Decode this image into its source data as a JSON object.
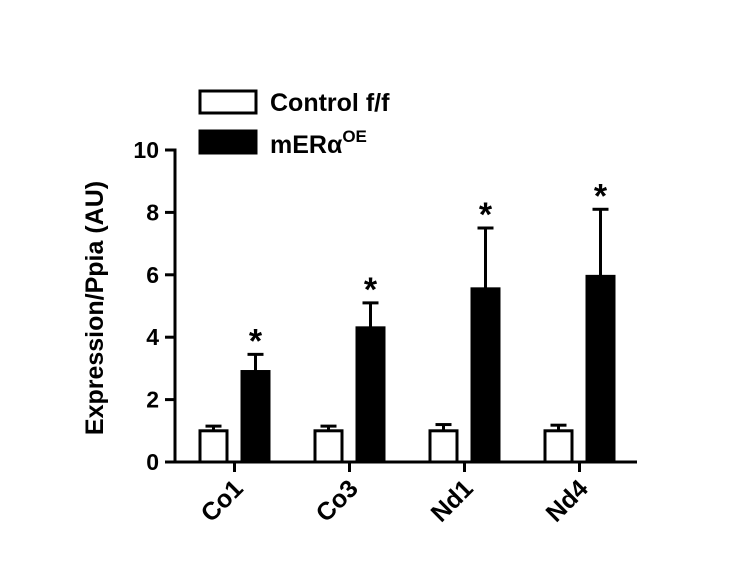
{
  "chart_data": {
    "type": "bar",
    "ylabel": "Expression/Ppia (AU)",
    "ylim": [
      0,
      10
    ],
    "yticks": [
      0,
      2,
      4,
      6,
      8,
      10
    ],
    "categories": [
      "Co1",
      "Co3",
      "Nd1",
      "Nd4"
    ],
    "series": [
      {
        "name": "Control f/f",
        "color": "#ffffff",
        "values": [
          1.0,
          1.0,
          1.0,
          1.0
        ],
        "errors": [
          0.15,
          0.15,
          0.2,
          0.18
        ],
        "significance": [
          "",
          "",
          "",
          ""
        ]
      },
      {
        "name": "mERα",
        "name_superscript": "OE",
        "color": "#000000",
        "values": [
          2.9,
          4.3,
          5.55,
          5.95
        ],
        "errors": [
          0.55,
          0.8,
          1.95,
          2.15
        ],
        "significance": [
          "*",
          "*",
          "*",
          "*"
        ]
      }
    ],
    "legend": "top-left",
    "grid": false
  }
}
